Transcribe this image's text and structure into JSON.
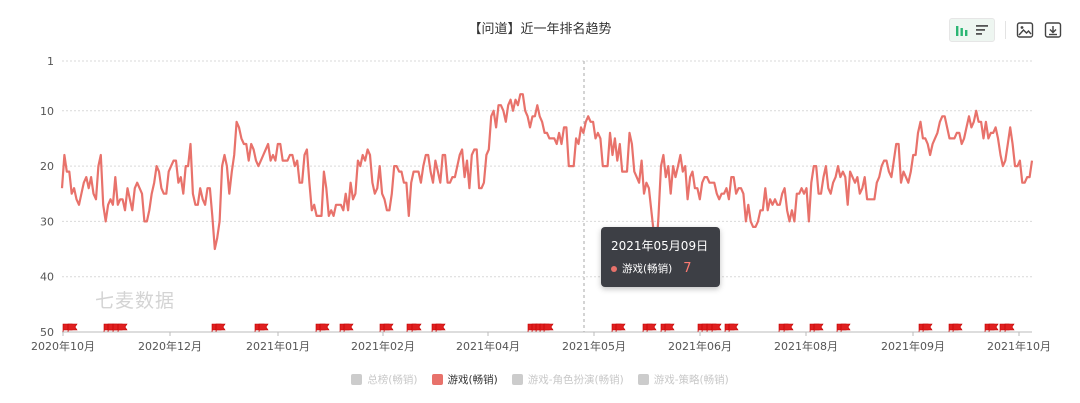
{
  "chart_data": {
    "type": "line",
    "title": "【问道】近一年排名趋势",
    "y_axis": {
      "inverted": true,
      "ylim": [
        1,
        50
      ],
      "ticks": [
        1,
        10,
        20,
        30,
        40,
        50
      ]
    },
    "x_tick_labels": [
      "2020年10月",
      "2020年12月",
      "2021年01月",
      "2021年02月",
      "2021年04月",
      "2021年05月",
      "2021年06月",
      "2021年08月",
      "2021年09月",
      "2021年10月"
    ],
    "grid": "horizontal dashed",
    "legend_position": "bottom-center",
    "legend": [
      {
        "name": "总榜(畅销)",
        "active": false,
        "color": "#cccccc"
      },
      {
        "name": "游戏(畅销)",
        "active": true,
        "color": "#e8726b"
      },
      {
        "name": "游戏-角色扮演(畅销)",
        "active": false,
        "color": "#cccccc"
      },
      {
        "name": "游戏-策略(畅销)",
        "active": false,
        "color": "#cccccc"
      }
    ],
    "series": [
      {
        "name": "游戏(畅销)",
        "color": "#e8726b",
        "values": [
          24,
          18,
          21,
          21,
          25,
          24,
          26,
          27,
          25,
          23,
          22,
          24,
          22,
          25,
          26,
          20,
          18,
          27,
          30,
          27,
          26,
          27,
          22,
          27,
          26,
          26,
          28,
          24,
          26,
          28,
          24,
          23,
          24,
          25,
          30,
          30,
          28,
          25,
          23,
          20,
          21,
          24,
          25,
          25,
          21,
          20,
          19,
          19,
          23,
          22,
          25,
          20,
          20,
          16,
          25,
          27,
          27,
          24,
          26,
          27,
          24,
          24,
          29,
          35,
          33,
          30,
          20,
          18,
          20,
          25,
          21,
          18,
          12,
          13,
          15,
          16,
          16,
          19,
          16,
          17,
          19,
          20,
          19,
          18,
          17,
          16,
          19,
          18,
          19,
          16,
          16,
          19,
          19,
          19,
          18,
          18,
          20,
          19,
          23,
          23,
          18,
          17,
          23,
          28,
          27,
          29,
          29,
          29,
          21,
          24,
          29,
          28,
          29,
          27,
          27,
          27,
          28,
          25,
          28,
          23,
          26,
          25,
          19,
          20,
          18,
          19,
          17,
          18,
          23,
          25,
          24,
          20,
          25,
          26,
          28,
          28,
          25,
          20,
          20,
          21,
          21,
          23,
          23,
          29,
          23,
          21,
          21,
          21,
          23,
          20,
          18,
          18,
          21,
          23,
          19,
          21,
          23,
          18,
          18,
          23,
          23,
          22,
          22,
          20,
          18,
          17,
          22,
          19,
          24,
          18,
          17,
          17,
          24,
          24,
          23,
          18,
          17,
          11,
          10,
          13,
          9,
          9,
          10,
          12,
          9,
          8,
          10,
          8,
          9,
          7,
          7,
          10,
          11,
          13,
          11,
          11,
          9,
          11,
          12,
          14,
          14,
          15,
          15,
          15,
          16,
          14,
          16,
          13,
          13,
          20,
          20,
          20,
          15,
          16,
          13,
          14,
          12,
          11,
          12,
          12,
          15,
          14,
          15,
          20,
          20,
          20,
          14,
          18,
          15,
          19,
          16,
          21,
          21,
          21,
          14,
          16,
          21,
          22,
          23,
          19,
          25,
          23,
          24,
          28,
          32,
          36,
          29,
          20,
          18,
          22,
          20,
          25,
          20,
          22,
          20,
          18,
          21,
          20,
          26,
          22,
          21,
          24,
          24,
          26,
          23,
          22,
          22,
          23,
          23,
          23,
          25,
          26,
          25,
          25,
          24,
          26,
          22,
          22,
          25,
          24,
          24,
          25,
          30,
          27,
          30,
          31,
          31,
          30,
          28,
          28,
          24,
          28,
          26,
          27,
          26,
          27,
          27,
          25,
          24,
          28,
          30,
          28,
          30,
          25,
          25,
          24,
          25,
          24,
          30,
          23,
          20,
          20,
          25,
          25,
          22,
          20,
          24,
          25,
          23,
          22,
          20,
          22,
          21,
          22,
          27,
          21,
          22,
          23,
          22,
          25,
          24,
          22,
          26,
          26,
          26,
          26,
          23,
          22,
          20,
          19,
          19,
          21,
          22,
          19,
          16,
          16,
          23,
          21,
          22,
          23,
          21,
          18,
          18,
          14,
          12,
          15,
          15,
          16,
          18,
          16,
          15,
          14,
          12,
          11,
          11,
          13,
          15,
          15,
          15,
          14,
          14,
          16,
          15,
          13,
          11,
          13,
          12,
          10,
          12,
          12,
          15,
          12,
          15,
          14,
          14,
          13,
          15,
          18,
          20,
          19,
          16,
          13,
          16,
          20,
          20,
          19,
          23,
          23,
          22,
          22,
          19
        ],
        "peak_date": "2021年05月09日",
        "peak_value": 7
      }
    ],
    "tooltip": {
      "date": "2021年05月09日",
      "series": "游戏(畅销)",
      "value": "7"
    },
    "flags_count": 36
  },
  "watermark": "七麦数据",
  "toolbar": {
    "icons": [
      "bar-chart-icon",
      "list-icon",
      "image-save-icon",
      "download-icon"
    ]
  }
}
